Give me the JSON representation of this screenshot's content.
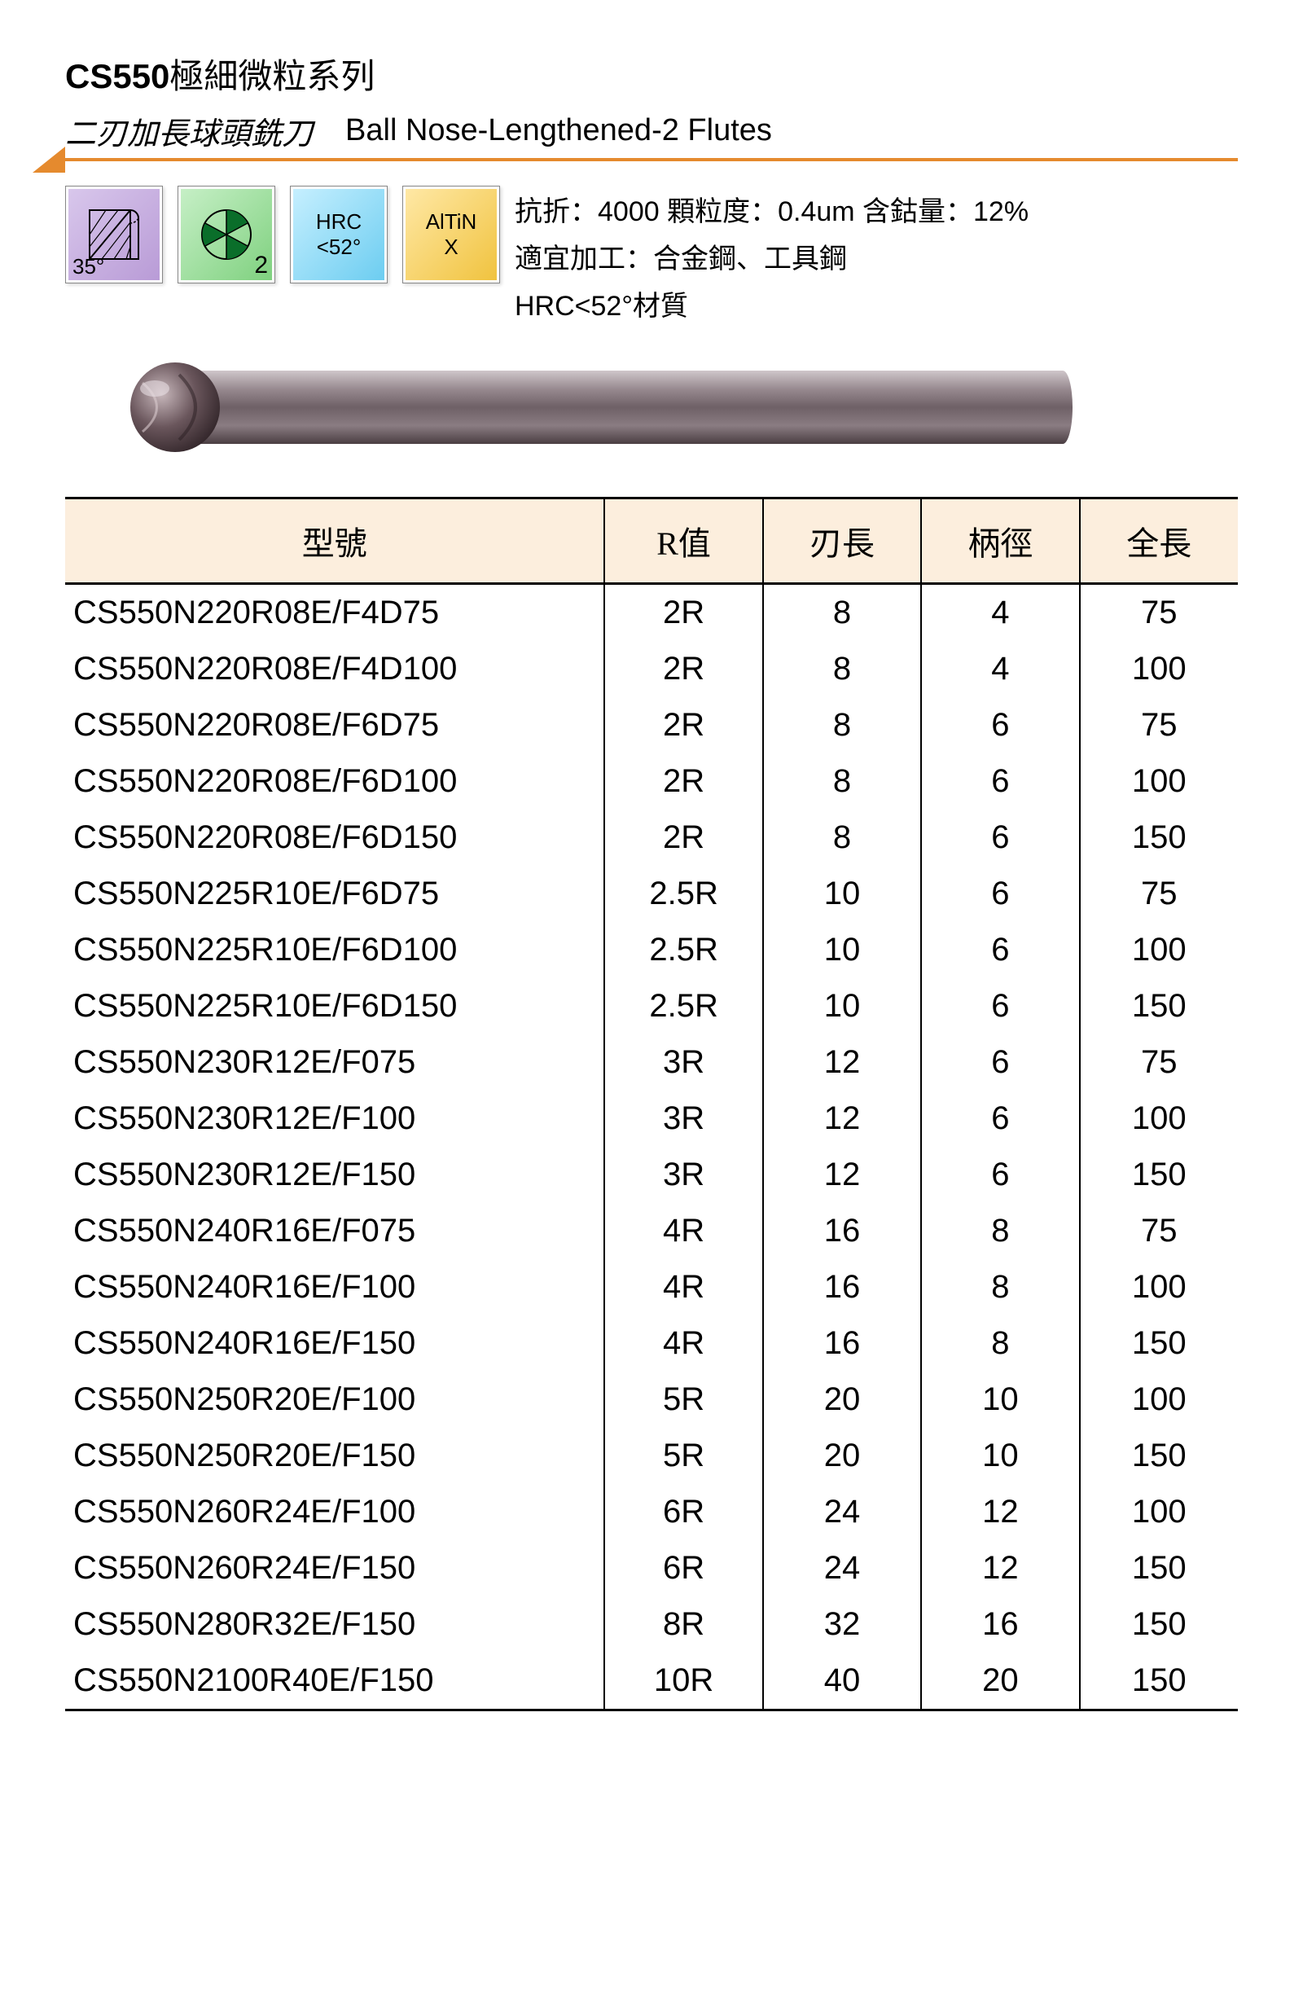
{
  "header": {
    "series_code": "CS550",
    "series_suffix": "極細微粒系列",
    "subtitle_cn": "二刃加長球頭銑刀",
    "subtitle_en": "Ball Nose-Lengthened-2 Flutes"
  },
  "badges": {
    "helix_angle": "35°",
    "flutes": "2",
    "hrc_label": "HRC",
    "hrc_value": "<52°",
    "coating_line1": "AlTiN",
    "coating_line2": "X",
    "colors": {
      "purple": "#c3a8e0",
      "green": "#8fdc8f",
      "blue": "#7dd6f5",
      "gold": "#f3c94a",
      "divider": "#e58a2e",
      "header_bg": "#fceedd"
    }
  },
  "spec_text": {
    "line1": "抗折：4000 顆粒度：0.4um 含鈷量：12%",
    "line2": "適宜加工：合金鋼、工具鋼",
    "line3": "HRC<52°材質"
  },
  "tool_svg": {
    "body_color": "#7a6a6e",
    "tip_color": "#5a4648",
    "hilite": "#c8bcc0",
    "shadow": "#3a2e30"
  },
  "table": {
    "columns": [
      "型號",
      "R值",
      "刃長",
      "柄徑",
      "全長"
    ],
    "rows": [
      [
        "CS550N220R08E/F4D75",
        "2R",
        "8",
        "4",
        "75"
      ],
      [
        "CS550N220R08E/F4D100",
        "2R",
        "8",
        "4",
        "100"
      ],
      [
        "CS550N220R08E/F6D75",
        "2R",
        "8",
        "6",
        "75"
      ],
      [
        "CS550N220R08E/F6D100",
        "2R",
        "8",
        "6",
        "100"
      ],
      [
        "CS550N220R08E/F6D150",
        "2R",
        "8",
        "6",
        "150"
      ],
      [
        "CS550N225R10E/F6D75",
        "2.5R",
        "10",
        "6",
        "75"
      ],
      [
        "CS550N225R10E/F6D100",
        "2.5R",
        "10",
        "6",
        "100"
      ],
      [
        "CS550N225R10E/F6D150",
        "2.5R",
        "10",
        "6",
        "150"
      ],
      [
        "CS550N230R12E/F075",
        "3R",
        "12",
        "6",
        "75"
      ],
      [
        "CS550N230R12E/F100",
        "3R",
        "12",
        "6",
        "100"
      ],
      [
        "CS550N230R12E/F150",
        "3R",
        "12",
        "6",
        "150"
      ],
      [
        "CS550N240R16E/F075",
        "4R",
        "16",
        "8",
        "75"
      ],
      [
        "CS550N240R16E/F100",
        "4R",
        "16",
        "8",
        "100"
      ],
      [
        "CS550N240R16E/F150",
        "4R",
        "16",
        "8",
        "150"
      ],
      [
        "CS550N250R20E/F100",
        "5R",
        "20",
        "10",
        "100"
      ],
      [
        "CS550N250R20E/F150",
        "5R",
        "20",
        "10",
        "150"
      ],
      [
        "CS550N260R24E/F100",
        "6R",
        "24",
        "12",
        "100"
      ],
      [
        "CS550N260R24E/F150",
        "6R",
        "24",
        "12",
        "150"
      ],
      [
        "CS550N280R32E/F150",
        "8R",
        "32",
        "16",
        "150"
      ],
      [
        "CS550N2100R40E/F150",
        "10R",
        "40",
        "20",
        "150"
      ]
    ]
  }
}
